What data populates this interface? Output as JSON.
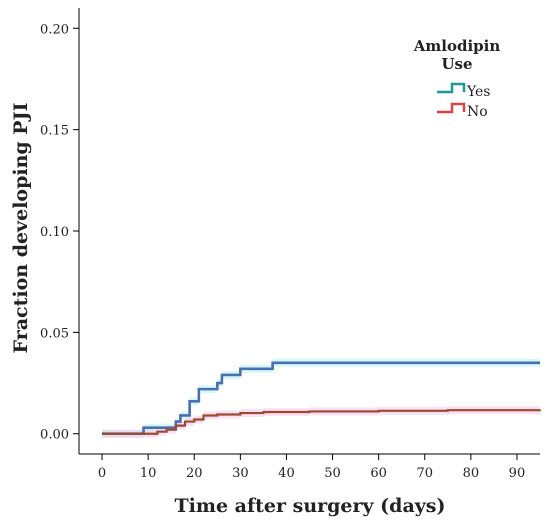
{
  "chart_data": {
    "type": "line",
    "title": "",
    "xlabel": "Time after surgery (days)",
    "ylabel": "Fraction developing PJI",
    "xlim": [
      -5,
      95
    ],
    "ylim": [
      -0.01,
      0.21
    ],
    "x_ticks": [
      0,
      10,
      20,
      30,
      40,
      50,
      60,
      70,
      80,
      90
    ],
    "x_tick_labels": [
      "0",
      "10",
      "20",
      "30",
      "40",
      "50",
      "60",
      "70",
      "80",
      "90"
    ],
    "y_ticks": [
      0.0,
      0.05,
      0.1,
      0.15,
      0.2
    ],
    "y_tick_labels": [
      "0.00",
      "0.05",
      "0.10",
      "0.15",
      "0.20"
    ],
    "grid": false,
    "legend": {
      "title_line1": "Amlodipin",
      "title_line2": "Use",
      "placement": "top-right"
    },
    "series": [
      {
        "name": "Yes",
        "legend_color": "#1a9a9a",
        "line_color": "#4a6fb0",
        "ci_color": "#b5f3f3",
        "x": [
          0,
          9,
          12,
          16,
          17,
          19,
          21,
          23,
          25,
          26,
          30,
          37,
          95
        ],
        "y": [
          0.0,
          0.003,
          0.003,
          0.006,
          0.009,
          0.016,
          0.022,
          0.022,
          0.025,
          0.029,
          0.032,
          0.035,
          0.035
        ]
      },
      {
        "name": "No",
        "legend_color": "#e0404c",
        "line_color": "#9b4a2e",
        "ci_color": "#f6c6ec",
        "x": [
          0,
          8,
          12,
          14,
          16,
          18,
          20,
          22,
          25,
          30,
          35,
          45,
          60,
          75,
          95
        ],
        "y": [
          0.0,
          0.0,
          0.001,
          0.002,
          0.004,
          0.006,
          0.007,
          0.009,
          0.0095,
          0.0102,
          0.0107,
          0.011,
          0.0113,
          0.0116,
          0.0118
        ]
      }
    ]
  }
}
